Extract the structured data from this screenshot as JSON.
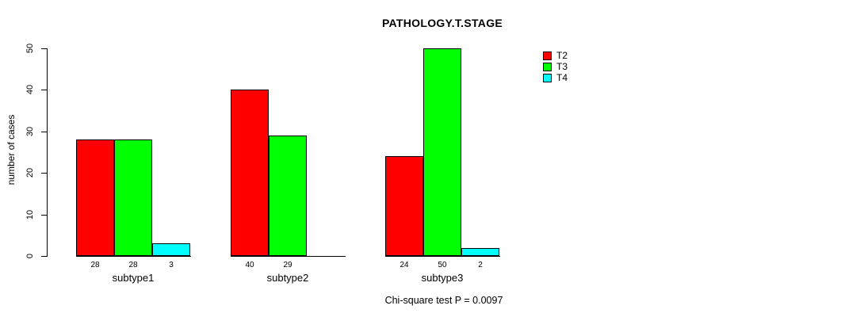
{
  "chart_data": {
    "type": "bar",
    "title": "PATHOLOGY.T.STAGE",
    "xlabel": "",
    "ylabel": "number of cases",
    "ylim": [
      0,
      50
    ],
    "yticks": [
      0,
      10,
      20,
      30,
      40,
      50
    ],
    "categories": [
      "subtype1",
      "subtype2",
      "subtype3"
    ],
    "series": [
      {
        "name": "T2",
        "color": "#ff0000",
        "values": [
          28,
          40,
          24
        ]
      },
      {
        "name": "T3",
        "color": "#00ff00",
        "values": [
          28,
          29,
          50
        ]
      },
      {
        "name": "T4",
        "color": "#00ffff",
        "values": [
          3,
          0,
          2
        ]
      }
    ],
    "bar_value_labels": [
      [
        "28",
        "28",
        "3"
      ],
      [
        "40",
        "29",
        ""
      ],
      [
        "24",
        "50",
        "2"
      ]
    ],
    "legend_position": "top-right",
    "legend_entries": [
      "T2",
      "T3",
      "T4"
    ],
    "grid": "off",
    "annotation": "Chi-square test P = 0.0097"
  }
}
